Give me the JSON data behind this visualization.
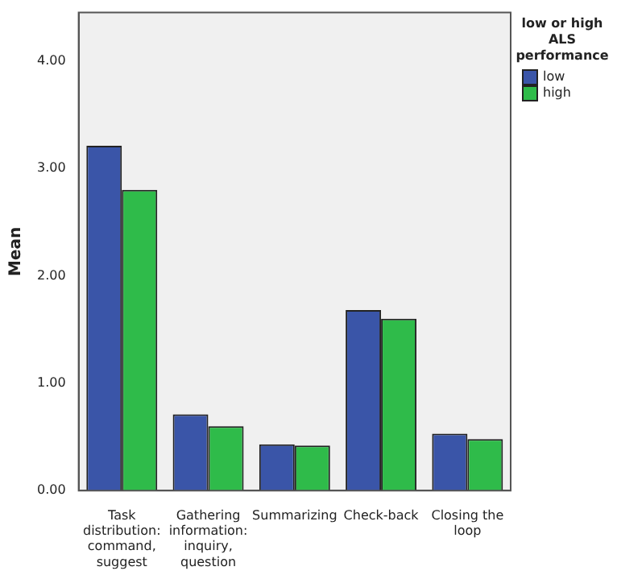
{
  "chart_data": {
    "type": "bar",
    "ylabel": "Mean",
    "legend_title": "low or high ALS performance",
    "legend": "top right",
    "grid": false,
    "categories": [
      "Task distribution: command, suggest",
      "Gathering information: inquiry, question",
      "Summarizing",
      "Check-back",
      "Closing the loop"
    ],
    "series": [
      {
        "name": "low",
        "color": "#3a55a8",
        "values": [
          3.21,
          0.71,
          0.43,
          1.68,
          0.53
        ]
      },
      {
        "name": "high",
        "color": "#2fbb4a",
        "values": [
          2.8,
          0.6,
          0.42,
          1.6,
          0.48
        ]
      }
    ],
    "ylim": [
      0,
      4.45
    ],
    "yticks": [
      {
        "value": 0,
        "label": "0.00"
      },
      {
        "value": 1,
        "label": "1.00"
      },
      {
        "value": 2,
        "label": "2.00"
      },
      {
        "value": 3,
        "label": "3.00"
      },
      {
        "value": 4,
        "label": "4.00"
      }
    ]
  }
}
